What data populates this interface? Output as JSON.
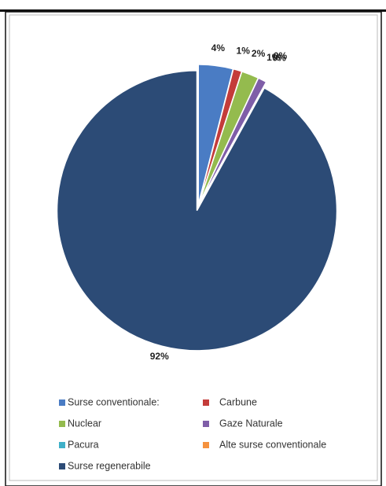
{
  "chart_data": {
    "type": "pie",
    "categories": [
      "Surse conventionale:",
      "Carbune",
      "Nuclear",
      "Gaze Naturale",
      "Pacura",
      "Alte surse conventionale",
      "Surse regenerabile"
    ],
    "values": [
      4,
      1,
      2,
      1,
      0,
      0,
      92
    ],
    "value_labels": [
      "4%",
      "1%",
      "2%",
      "1%",
      "0%",
      "0%",
      "92%"
    ],
    "colors": [
      "#4a7cc4",
      "#c43c3a",
      "#94bb4e",
      "#7f5ea8",
      "#3fb0c8",
      "#f5923e",
      "#2c4b76"
    ],
    "legend": "bottom"
  }
}
